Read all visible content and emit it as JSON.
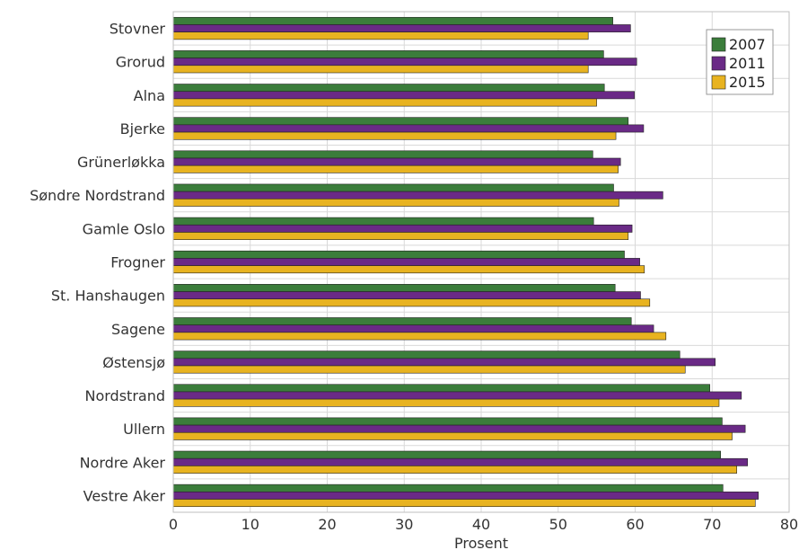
{
  "chart_data": {
    "type": "bar",
    "orientation": "horizontal",
    "categories": [
      "Stovner",
      "Grorud",
      "Alna",
      "Bjerke",
      "Grünerløkka",
      "Søndre Nordstrand",
      "Gamle Oslo",
      "Frogner",
      "St. Hanshaugen",
      "Sagene",
      "Østensjø",
      "Nordstrand",
      "Ullern",
      "Nordre Aker",
      "Vestre Aker"
    ],
    "series": [
      {
        "name": "2007",
        "color": "#3b7d3b",
        "values": [
          57.1,
          55.9,
          56.0,
          59.1,
          54.5,
          57.2,
          54.6,
          58.6,
          57.4,
          59.5,
          65.8,
          69.7,
          71.3,
          71.1,
          71.4
        ]
      },
      {
        "name": "2011",
        "color": "#6a2a86",
        "values": [
          59.4,
          60.2,
          59.9,
          61.1,
          58.1,
          63.6,
          59.6,
          60.6,
          60.7,
          62.4,
          70.4,
          73.8,
          74.3,
          74.6,
          76.0
        ]
      },
      {
        "name": "2015",
        "color": "#e8b320",
        "values": [
          53.9,
          53.9,
          55.0,
          57.5,
          57.8,
          57.9,
          59.1,
          61.2,
          61.9,
          64.0,
          66.5,
          70.9,
          72.6,
          73.2,
          75.6
        ]
      }
    ],
    "xlabel": "Prosent",
    "ylabel": "",
    "title": "",
    "xlim": [
      0,
      80
    ],
    "xticks": [
      "0",
      "10",
      "20",
      "30",
      "40",
      "50",
      "60",
      "70",
      "80"
    ],
    "grid": true,
    "legend_position": "top-right"
  }
}
